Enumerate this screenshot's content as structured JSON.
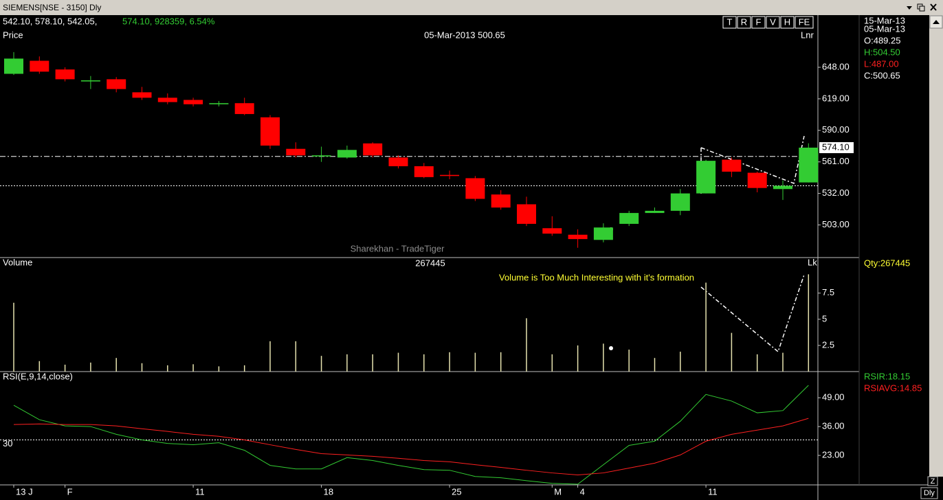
{
  "window": {
    "title": "SIEMENS[NSE - 3150] Dly"
  },
  "header": {
    "ohlc": "542.10, 578.10, 542.05,",
    "change": "574.10,  928359, 6.54%",
    "crosshair": "05-Mar-2013 500.65",
    "buttons": [
      "T",
      "R",
      "F",
      "V",
      "H",
      "FE"
    ]
  },
  "info": {
    "last_date": "15-Mar-13",
    "date": "05-Mar-13",
    "open": "O:489.25",
    "high": "H:504.50",
    "low": "L:487.00",
    "close": "C:500.65",
    "qty": "Qty:267445"
  },
  "watermark": "Sharekhan - TradeTiger",
  "footer": {
    "buttons": [
      "Z",
      "Dly"
    ]
  },
  "chart_data": [
    {
      "type": "candlestick",
      "title": "Price",
      "scale_label": "Lnr",
      "open": [
        642,
        654,
        646,
        635,
        637,
        625,
        620,
        618,
        614,
        615,
        602,
        573,
        566,
        565,
        578,
        565,
        557,
        549,
        546,
        531,
        522,
        500,
        494,
        489.25,
        504,
        514,
        516,
        532,
        563,
        551,
        536,
        542.1
      ],
      "high": [
        662,
        658,
        648,
        640,
        639,
        630,
        624,
        620,
        617,
        620,
        604,
        579,
        575,
        576,
        579,
        567,
        560,
        553,
        548,
        535,
        529,
        511,
        499,
        504.5,
        516,
        519,
        536,
        563,
        565,
        552,
        544,
        578.1
      ],
      "low": [
        641,
        642,
        635,
        628,
        625,
        618,
        614,
        612,
        612,
        604,
        573,
        565,
        561,
        564,
        565,
        555,
        546,
        545,
        525,
        517,
        502,
        493,
        482,
        487,
        502,
        514,
        512,
        532,
        547,
        533,
        526,
        542.05
      ],
      "close": [
        656,
        644,
        637,
        636,
        628,
        620,
        616,
        614,
        615,
        605,
        576,
        567,
        567,
        572,
        567,
        557,
        547,
        548,
        527,
        519,
        504,
        495,
        490,
        500.65,
        514,
        516,
        532,
        562,
        552,
        537,
        539,
        574.1
      ],
      "up_color": "#33cc33",
      "down_color": "#ff0000",
      "ylim": [
        473,
        696
      ],
      "yticks": [
        {
          "value": 503,
          "label": "503.00"
        },
        {
          "value": 532,
          "label": "532.00"
        },
        {
          "value": 561,
          "label": "561.00"
        },
        {
          "value": 590,
          "label": "590.00"
        },
        {
          "value": 619,
          "label": "619.00"
        },
        {
          "value": 648,
          "label": "648.00"
        }
      ],
      "last_price": {
        "value": 574.1,
        "label": "574.10"
      },
      "hlines": [
        566,
        539
      ],
      "hline_styles": [
        "dashdot",
        "dotted"
      ]
    },
    {
      "type": "bar",
      "title": "Volume",
      "subtitle": "267445",
      "unit": "Lk",
      "annotation": "Volume is Too Much Interesting with it's formation",
      "values": [
        6.58,
        1.0,
        0.66,
        0.86,
        1.3,
        0.8,
        0.6,
        0.7,
        0.5,
        0.6,
        2.9,
        2.9,
        1.5,
        1.65,
        1.65,
        1.8,
        1.65,
        1.85,
        1.8,
        1.85,
        5.1,
        1.65,
        2.5,
        2.67,
        2.1,
        1.3,
        1.9,
        8.5,
        3.7,
        1.65,
        1.8,
        9.3
      ],
      "color": "#e8e4b0",
      "ylim": [
        0,
        10.9
      ],
      "yticks": [
        2.5,
        5,
        7.5
      ]
    },
    {
      "type": "line",
      "title": "RSI(E,9,14,close)",
      "categories": [
        "13 J",
        null,
        "F",
        null,
        null,
        null,
        null,
        "11",
        null,
        null,
        null,
        null,
        "18",
        null,
        null,
        null,
        null,
        "25",
        null,
        null,
        null,
        "M",
        "4",
        null,
        null,
        null,
        null,
        "11",
        null,
        null,
        null,
        null
      ],
      "series": [
        {
          "name": "RSIR:18.15",
          "color": "#33cc33",
          "values": [
            45.6,
            39.1,
            36.3,
            36,
            32.5,
            30,
            28.4,
            27.8,
            28.7,
            25.3,
            18.5,
            16.9,
            16.9,
            22,
            20.7,
            18.5,
            16.6,
            16.3,
            13.5,
            12.9,
            11.6,
            10.4,
            10,
            18.8,
            27.5,
            29.4,
            38.4,
            50.5,
            47.5,
            42.2,
            43.2,
            54.6
          ]
        },
        {
          "name": "RSIAVG:14.85",
          "color": "#ff2020",
          "values": [
            36.9,
            37.2,
            36.9,
            36.9,
            36.3,
            35,
            33.8,
            32.5,
            31.6,
            30,
            27.8,
            25.7,
            23.8,
            23.2,
            22.6,
            21.7,
            20.7,
            20.1,
            18.8,
            17.6,
            16.3,
            15.1,
            14.2,
            15.1,
            17.3,
            19.5,
            23.2,
            29.4,
            32.5,
            34.4,
            36.3,
            39.7
          ]
        }
      ],
      "ylim": [
        9.7,
        60.8
      ],
      "yticks": [
        {
          "value": 23,
          "label": "23.00"
        },
        {
          "value": 36,
          "label": "36.00"
        },
        {
          "value": 49,
          "label": "49.00"
        }
      ],
      "level": 30
    }
  ]
}
